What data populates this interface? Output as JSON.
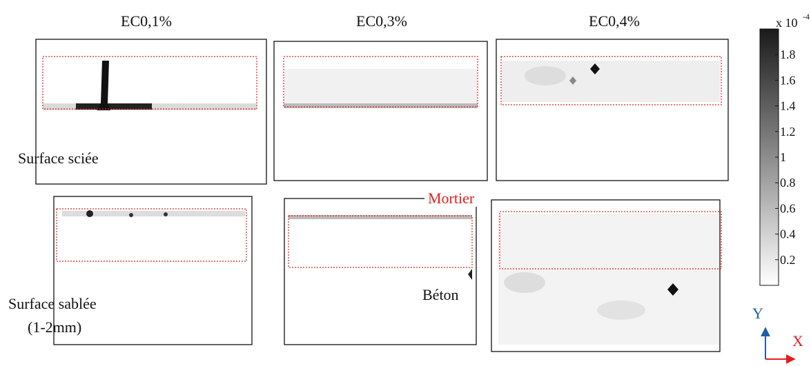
{
  "columns": [
    "EC0,1%",
    "EC0,3%",
    "EC0,4%"
  ],
  "rows": [
    "Surface sciée",
    "Surface sablée",
    "(1-2mm)"
  ],
  "annotations": {
    "mortar": "Mortier",
    "concrete": "Béton"
  },
  "colorbar": {
    "multiplier": "x 10",
    "exponent": "-4",
    "lim": [
      0,
      2
    ],
    "ticks": [
      0.2,
      0.4,
      0.6,
      0.8,
      1,
      1.2,
      1.4,
      1.6,
      1.8
    ]
  },
  "axes": {
    "x": "X",
    "y": "Y"
  }
}
